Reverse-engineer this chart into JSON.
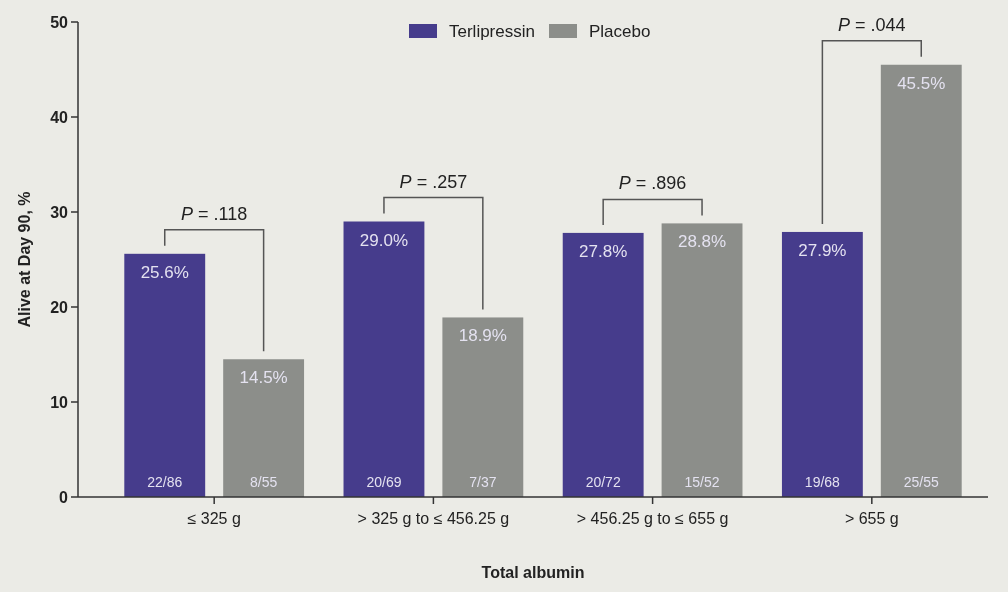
{
  "chart_data": {
    "type": "bar",
    "xlabel": "Total albumin",
    "ylabel": "Alive at Day 90, %",
    "categories": [
      "≤ 325 g",
      "> 325 g to ≤ 456.25 g",
      "> 456.25 g to ≤ 655 g",
      "> 655 g"
    ],
    "series": [
      {
        "name": "Terlipressin",
        "color": "#463c8c",
        "values": [
          25.6,
          29.0,
          27.8,
          27.9
        ],
        "value_labels": [
          "25.6%",
          "29.0%",
          "27.8%",
          "27.9%"
        ]
      },
      {
        "name": "Placebo",
        "color": "#8c8e8a",
        "values": [
          14.5,
          18.9,
          28.8,
          45.5
        ],
        "value_labels": [
          "14.5%",
          "18.9%",
          "28.8%",
          "45.5%"
        ]
      }
    ],
    "ylim": [
      0,
      50
    ],
    "yticks": [
      0,
      10,
      20,
      30,
      40,
      50
    ],
    "grid": false,
    "legend": "top",
    "annotations": [
      "P = .118",
      "P = .257",
      "P = .896",
      "P = .044",
      "22/86",
      "8/55",
      "20/69",
      "7/37",
      "20/72",
      "15/52",
      "19/68",
      "25/55"
    ]
  }
}
